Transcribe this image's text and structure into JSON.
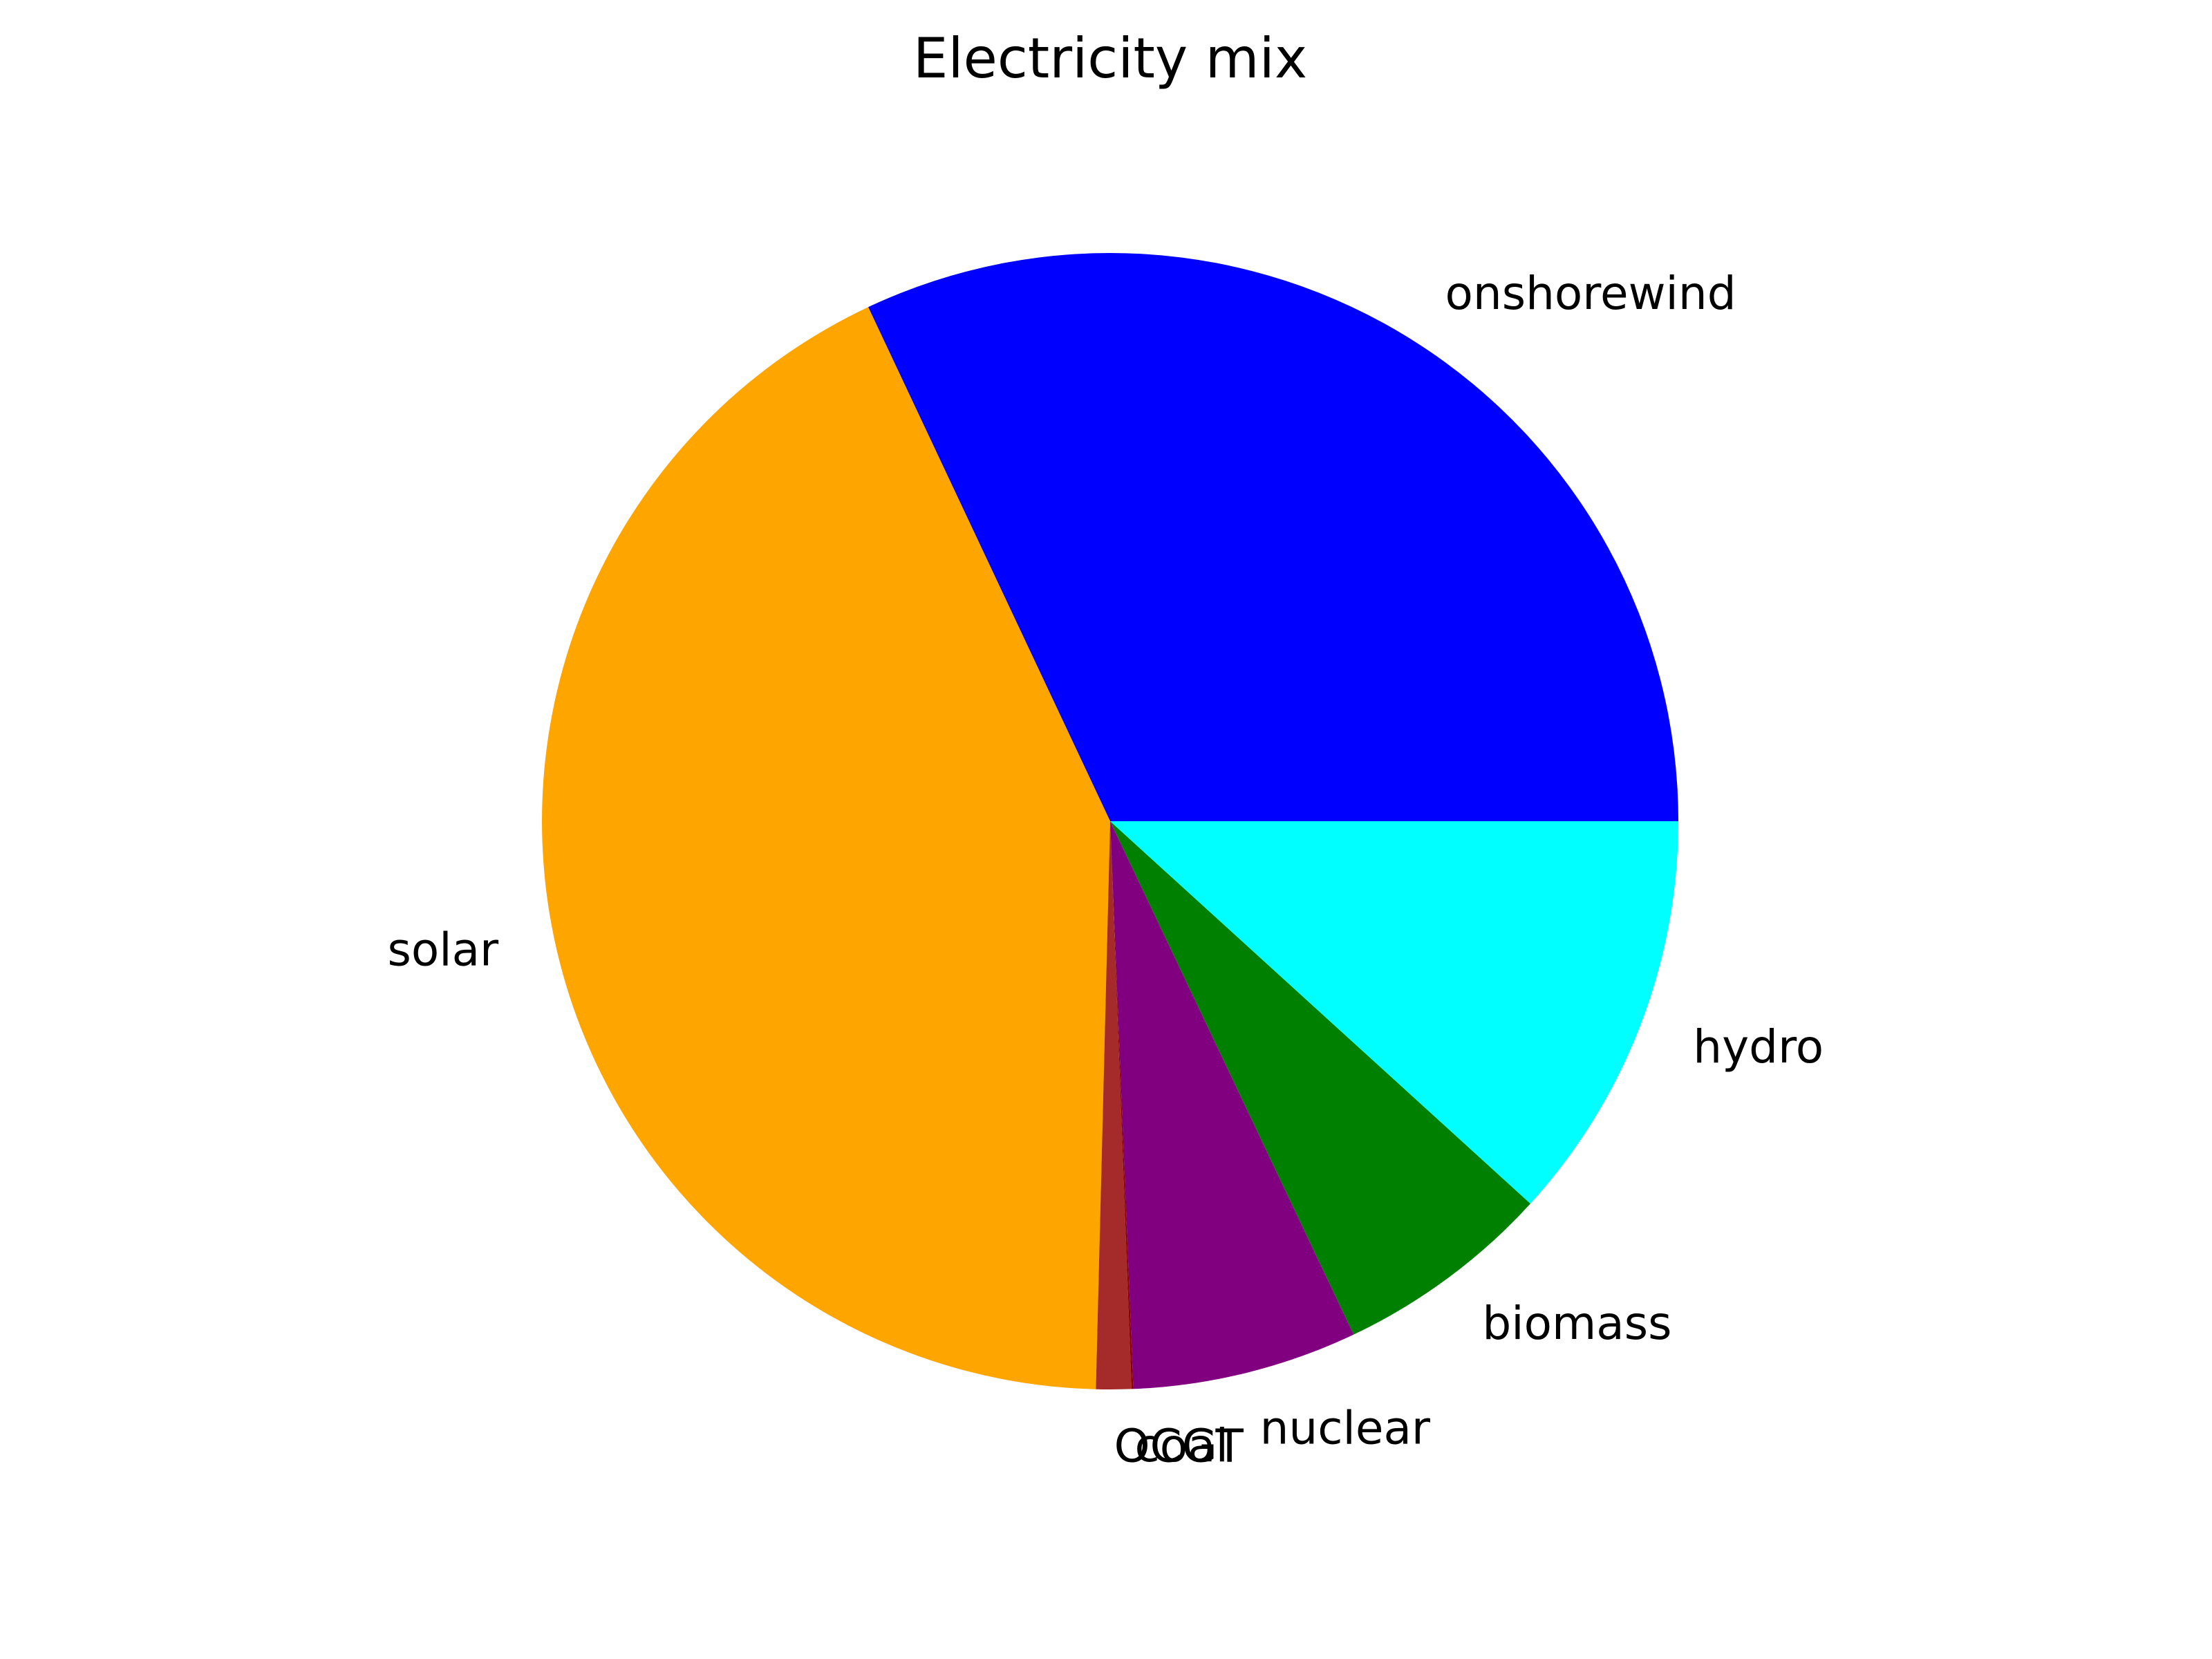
{
  "chart_data": {
    "type": "pie",
    "title": "Electricity mix",
    "slices": [
      {
        "label": "onshorewind",
        "value": 32.0,
        "color": "#0000ff"
      },
      {
        "label": "solar",
        "value": 42.6,
        "color": "#ffa500"
      },
      {
        "label": "OCGT",
        "value": 1.0,
        "color": "#a52a2a"
      },
      {
        "label": "coal",
        "value": 0.05,
        "color": "#8b0000"
      },
      {
        "label": "nuclear",
        "value": 6.4,
        "color": "#800080"
      },
      {
        "label": "biomass",
        "value": 6.2,
        "color": "#008000"
      },
      {
        "label": "hydro",
        "value": 11.75,
        "color": "#00ffff"
      }
    ],
    "start_angle_deg": 0,
    "direction": "counterclockwise",
    "legend": "none"
  }
}
